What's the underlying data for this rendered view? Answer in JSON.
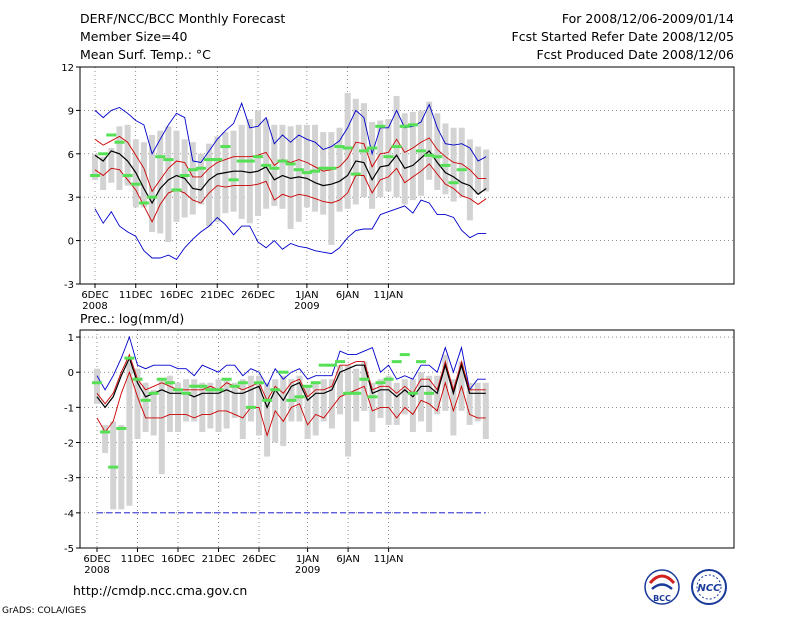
{
  "header": {
    "title": "DERF/NCC/BCC Monthly Forecast",
    "member_size": "Member Size=40",
    "variable": "Mean Surf. Temp.: °C",
    "period": "For 2008/12/06-2009/01/14",
    "started": "Fcst Started Refer Date 2008/12/05",
    "produced": "Fcst Produced Date 2008/12/06"
  },
  "footer": {
    "url": "http://cmdp.ncc.cma.gov.cn",
    "grads": "GrADS: COLA/IGES",
    "logo_bcc_text": "BCC",
    "logo_ncc_text": "NCC"
  },
  "colors": {
    "max_min": "#0000cc",
    "spread": "#cc0000",
    "mean": "#000000",
    "bar": "#d3d3d3",
    "marker": "#55e055",
    "dashed": "#0000cc"
  },
  "chart_data": [
    {
      "type": "line",
      "title": "Mean Surf. Temp.: °C",
      "x_tick_labels": [
        "6DEC",
        "11DEC",
        "16DEC",
        "21DEC",
        "26DEC",
        "1JAN",
        "6JAN",
        "11JAN"
      ],
      "x_tick_days": [
        0,
        5,
        10,
        15,
        20,
        26,
        31,
        36
      ],
      "year_labels": [
        {
          "day": 0,
          "label": "2008"
        },
        {
          "day": 26,
          "label": "2009"
        }
      ],
      "yticks": [
        -3,
        0,
        3,
        6,
        9,
        12
      ],
      "ylim": [
        -3,
        12
      ],
      "series": [
        {
          "name": "max",
          "values": [
            9.0,
            8.5,
            9.0,
            9.2,
            8.8,
            8.3,
            8.0,
            6.0,
            7.0,
            8.0,
            8.8,
            8.5,
            5.5,
            5.4,
            6.2,
            7.0,
            7.6,
            8.1,
            9.5,
            7.8,
            7.9,
            8.5,
            6.7,
            7.3,
            6.8,
            7.3,
            7.0,
            6.8,
            6.3,
            6.5,
            6.9,
            7.8,
            9.0,
            8.5,
            6.0,
            7.8,
            7.8,
            9.0,
            7.8,
            7.9,
            8.2,
            9.4,
            7.8,
            6.7,
            6.6,
            6.7,
            6.4,
            5.5,
            5.8
          ]
        },
        {
          "name": "mean_plus",
          "values": [
            7.0,
            6.6,
            6.9,
            7.2,
            6.8,
            5.9,
            5.0,
            3.4,
            4.2,
            5.0,
            5.5,
            5.4,
            4.4,
            4.4,
            5.0,
            5.4,
            5.6,
            5.8,
            5.8,
            5.8,
            5.9,
            6.1,
            5.2,
            5.6,
            5.4,
            5.6,
            5.4,
            5.1,
            4.8,
            4.9,
            5.1,
            5.7,
            6.8,
            6.7,
            5.1,
            6.0,
            6.1,
            7.0,
            6.1,
            6.4,
            6.8,
            7.1,
            6.3,
            5.8,
            5.4,
            5.3,
            4.9,
            4.3,
            4.3
          ]
        },
        {
          "name": "mean",
          "values": [
            5.9,
            5.5,
            6.2,
            6.0,
            5.5,
            4.7,
            3.6,
            2.6,
            3.6,
            4.2,
            4.5,
            4.3,
            3.6,
            3.5,
            4.2,
            4.6,
            4.7,
            4.8,
            4.8,
            4.7,
            4.8,
            5.1,
            4.2,
            4.5,
            4.3,
            4.4,
            4.3,
            4.0,
            3.8,
            3.9,
            4.1,
            4.5,
            5.5,
            5.4,
            4.2,
            5.1,
            5.2,
            5.9,
            5.0,
            5.2,
            5.7,
            6.2,
            5.4,
            4.7,
            4.4,
            4.0,
            3.8,
            3.2,
            3.6
          ]
        },
        {
          "name": "mean_minus",
          "values": [
            4.9,
            4.5,
            5.0,
            4.9,
            4.2,
            3.5,
            2.4,
            1.3,
            2.5,
            3.3,
            3.5,
            3.3,
            2.8,
            2.6,
            3.3,
            3.8,
            3.7,
            3.8,
            3.8,
            3.8,
            3.9,
            4.1,
            2.8,
            3.2,
            3.0,
            3.2,
            3.1,
            2.9,
            2.7,
            2.6,
            2.8,
            3.3,
            4.5,
            4.5,
            3.3,
            4.2,
            4.4,
            5.0,
            4.0,
            4.4,
            4.8,
            5.3,
            4.6,
            3.9,
            3.6,
            3.1,
            2.9,
            2.5,
            2.9
          ]
        },
        {
          "name": "min",
          "values": [
            2.2,
            1.2,
            2.0,
            1.0,
            0.6,
            0.3,
            -0.7,
            -1.2,
            -1.2,
            -1.0,
            -1.3,
            -0.5,
            0.1,
            0.6,
            1.0,
            1.6,
            1.1,
            0.4,
            1.0,
            1.0,
            -0.1,
            -0.5,
            0.0,
            -0.6,
            -0.2,
            -0.4,
            -0.5,
            -0.7,
            -0.8,
            -0.9,
            -0.5,
            0.2,
            0.7,
            0.8,
            0.8,
            1.8,
            2.0,
            2.2,
            2.4,
            1.9,
            2.8,
            2.6,
            1.8,
            1.8,
            1.6,
            0.7,
            0.2,
            0.5,
            0.5
          ]
        },
        {
          "name": "box_top",
          "values": [
            6.0,
            5.8,
            6.4,
            7.9,
            8.0,
            7.0,
            6.8,
            7.3,
            7.6,
            7.9,
            7.6,
            7.0,
            6.8,
            6.0,
            6.7,
            7.2,
            7.5,
            7.6,
            8.0,
            8.4,
            9.0,
            8.4,
            8.0,
            8.0,
            7.9,
            8.0,
            8.0,
            8.0,
            7.5,
            7.5,
            7.8,
            10.2,
            9.8,
            9.5,
            8.2,
            8.3,
            8.4,
            10.0,
            8.8,
            8.9,
            9.0,
            9.6,
            8.8,
            8.1,
            7.8,
            7.8,
            7.0,
            6.5,
            6.3
          ]
        },
        {
          "name": "box_bottom",
          "values": [
            4.2,
            3.5,
            4.0,
            3.5,
            3.8,
            2.3,
            2.3,
            0.6,
            0.5,
            -0.1,
            1.3,
            1.6,
            1.8,
            2.5,
            1.0,
            1.3,
            1.9,
            2.0,
            1.5,
            1.2,
            1.7,
            2.2,
            2.4,
            2.2,
            0.8,
            1.3,
            2.3,
            2.0,
            1.8,
            -0.3,
            2.0,
            2.2,
            2.5,
            3.0,
            2.2,
            3.0,
            3.4,
            3.0,
            2.5,
            2.8,
            3.1,
            4.2,
            3.5,
            3.2,
            2.7,
            3.0,
            1.4,
            3.2,
            3.4
          ]
        },
        {
          "name": "marker",
          "values": [
            4.5,
            6.0,
            7.3,
            6.8,
            4.5,
            3.9,
            2.6,
            3.0,
            5.8,
            5.6,
            3.5,
            4.5,
            4.9,
            5.0,
            5.6,
            5.6,
            6.5,
            4.2,
            5.5,
            5.5,
            5.8,
            5.2,
            5.0,
            5.5,
            5.3,
            4.9,
            4.7,
            4.8,
            5.0,
            5.0,
            6.5,
            6.4,
            4.6,
            6.2,
            6.4,
            7.9,
            5.8,
            6.5,
            7.9,
            8.0,
            6.2,
            5.9,
            5.8,
            5.2,
            4.0,
            4.9,
            null,
            null,
            null
          ]
        }
      ]
    },
    {
      "type": "line",
      "title": "Prec.: log(mm/d)",
      "x_tick_labels": [
        "6DEC",
        "11DEC",
        "16DEC",
        "21DEC",
        "26DEC",
        "1JAN",
        "6JAN",
        "11JAN"
      ],
      "x_tick_days": [
        0,
        5,
        10,
        15,
        20,
        26,
        31,
        36
      ],
      "year_labels": [
        {
          "day": 0,
          "label": "2008"
        },
        {
          "day": 26,
          "label": "2009"
        }
      ],
      "yticks": [
        -5,
        -4,
        -3,
        -2,
        -1,
        0,
        1
      ],
      "ylim": [
        -5,
        1.2
      ],
      "series": [
        {
          "name": "max",
          "values": [
            -0.1,
            -0.5,
            -0.1,
            0.4,
            1.0,
            0.2,
            0.1,
            0.2,
            0.2,
            0.2,
            0.1,
            0.1,
            -0.1,
            0.2,
            0.1,
            0.0,
            0.2,
            0.2,
            -0.1,
            0.1,
            0.0,
            -0.4,
            0.1,
            -0.2,
            0.0,
            0.1,
            -0.2,
            -0.1,
            -0.1,
            -0.1,
            0.6,
            0.5,
            0.5,
            0.6,
            0.7,
            0.0,
            0.2,
            -0.2,
            -0.1,
            -0.2,
            0.2,
            0.2,
            0.0,
            0.7,
            0.0,
            0.7,
            -0.5,
            -0.2,
            -0.2
          ]
        },
        {
          "name": "mean_plus",
          "values": [
            -0.6,
            -0.9,
            -0.6,
            0.0,
            0.5,
            -0.2,
            -0.5,
            -0.4,
            -0.3,
            -0.4,
            -0.5,
            -0.5,
            -0.5,
            -0.5,
            -0.4,
            -0.5,
            -0.3,
            -0.4,
            -0.5,
            -0.4,
            -0.3,
            -0.8,
            -0.4,
            -0.6,
            -0.3,
            -0.2,
            -0.7,
            -0.5,
            -0.5,
            -0.4,
            0.2,
            0.2,
            0.3,
            0.3,
            -0.5,
            -0.4,
            -0.4,
            -0.6,
            -0.4,
            -0.6,
            -0.2,
            -0.2,
            -0.5,
            0.3,
            -0.5,
            0.3,
            -0.5,
            -0.5,
            -0.5
          ]
        },
        {
          "name": "mean",
          "values": [
            -0.7,
            -1.0,
            -0.7,
            -0.1,
            0.4,
            -0.3,
            -0.7,
            -0.6,
            -0.5,
            -0.6,
            -0.6,
            -0.6,
            -0.7,
            -0.6,
            -0.6,
            -0.6,
            -0.5,
            -0.6,
            -0.6,
            -0.5,
            -0.4,
            -1.0,
            -0.5,
            -0.8,
            -0.4,
            -0.3,
            -0.8,
            -0.6,
            -0.6,
            -0.5,
            0.0,
            0.1,
            0.2,
            0.2,
            -0.6,
            -0.5,
            -0.5,
            -0.7,
            -0.5,
            -0.7,
            -0.4,
            -0.4,
            -0.6,
            0.2,
            -0.6,
            0.2,
            -0.6,
            -0.6,
            -0.6
          ]
        },
        {
          "name": "mean_minus",
          "values": [
            -1.3,
            -1.7,
            -1.4,
            -0.6,
            0.0,
            -0.7,
            -1.3,
            -1.3,
            -1.3,
            -1.2,
            -1.2,
            -1.2,
            -1.3,
            -1.2,
            -1.2,
            -1.1,
            -1.1,
            -1.2,
            -1.3,
            -1.0,
            -1.0,
            -1.8,
            -1.1,
            -1.4,
            -1.0,
            -0.9,
            -1.5,
            -1.2,
            -1.3,
            -1.0,
            -0.7,
            -0.6,
            -0.5,
            -0.4,
            -1.1,
            -1.0,
            -1.0,
            -1.3,
            -1.0,
            -1.2,
            -0.8,
            -0.9,
            -1.1,
            -0.3,
            -1.1,
            -0.4,
            -1.2,
            -1.3,
            -1.3
          ]
        },
        {
          "name": "min",
          "values": [
            -4,
            -4,
            -4,
            -4,
            -4,
            -4,
            -4,
            -4,
            -4,
            -4,
            -4,
            -4,
            -4,
            -4,
            -4,
            -4,
            -4,
            -4,
            -4,
            -4,
            -4,
            -4,
            -4,
            -4,
            -4,
            -4,
            -4,
            -4,
            -4,
            -4,
            -4,
            -4,
            -4,
            -4,
            -4,
            -4,
            -4,
            -4,
            -4,
            -4,
            -4,
            -4,
            -4,
            -4,
            -4,
            -4,
            -4,
            -4,
            -4
          ]
        },
        {
          "name": "box_top",
          "values": [
            0.1,
            -1.5,
            -1.4,
            -1.5,
            0.3,
            0.1,
            -0.3,
            -0.5,
            -0.2,
            -0.1,
            -0.3,
            -0.2,
            -0.2,
            -0.3,
            -0.3,
            -0.2,
            -0.2,
            -0.3,
            -0.2,
            -0.1,
            -0.1,
            -0.3,
            -0.2,
            -0.1,
            -0.2,
            -0.1,
            -0.4,
            -0.3,
            -0.2,
            -0.2,
            0.2,
            0.2,
            0.1,
            0.3,
            -0.3,
            -0.2,
            -0.1,
            -0.3,
            -0.2,
            -0.2,
            0.0,
            -0.1,
            -0.1,
            0.5,
            -0.2,
            0.3,
            -0.3,
            -0.3,
            -0.3
          ]
        },
        {
          "name": "box_bottom",
          "values": [
            -0.9,
            -2.3,
            -3.9,
            -3.9,
            -3.8,
            -1.9,
            -1.7,
            -1.8,
            -2.9,
            -1.7,
            -1.7,
            -1.4,
            -1.4,
            -1.7,
            -1.6,
            -1.7,
            -1.6,
            -1.3,
            -1.9,
            -1.4,
            -1.8,
            -2.4,
            -2.0,
            -2.1,
            -1.4,
            -1.4,
            -1.9,
            -1.8,
            -1.4,
            -1.6,
            -1.2,
            -2.4,
            -1.4,
            -1.1,
            -1.7,
            -1.3,
            -1.5,
            -1.5,
            -1.2,
            -1.7,
            -1.4,
            -1.7,
            -1.2,
            -1.1,
            -1.8,
            -1.1,
            -1.5,
            -1.4,
            -1.9
          ]
        },
        {
          "name": "marker",
          "values": [
            -0.3,
            -1.7,
            -2.7,
            -1.6,
            0.4,
            -0.2,
            -0.8,
            -0.6,
            -0.2,
            -0.3,
            -0.5,
            -0.6,
            -0.4,
            -0.4,
            -0.5,
            -0.5,
            -0.2,
            -0.4,
            -0.3,
            -1.0,
            -0.3,
            -0.8,
            -0.5,
            -0.0,
            -0.8,
            -0.7,
            -0.4,
            -0.3,
            0.2,
            0.2,
            0.3,
            -0.6,
            -0.6,
            -0.2,
            -0.7,
            -0.3,
            -0.2,
            0.3,
            0.5,
            -0.6,
            0.3,
            -0.6,
            null,
            null,
            null,
            null,
            null,
            null,
            null
          ]
        }
      ]
    }
  ]
}
